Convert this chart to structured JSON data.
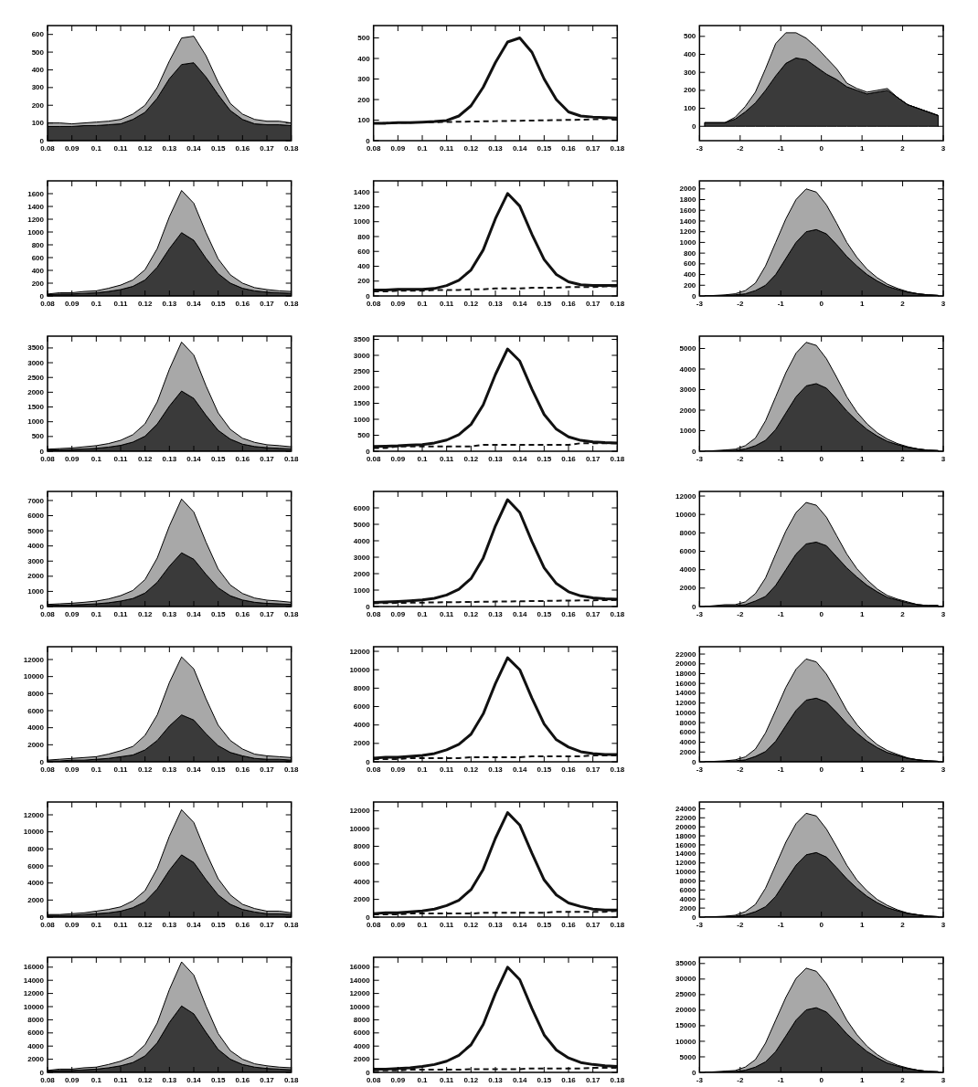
{
  "chart_data": [
    {
      "type": "area",
      "stacked": true,
      "xlim": [
        0.08,
        0.18
      ],
      "xticks": [
        0.08,
        0.09,
        0.1,
        0.11,
        0.12,
        0.13,
        0.14,
        0.15,
        0.16,
        0.17,
        0.18
      ],
      "ylim": [
        0,
        650
      ],
      "yticks": [
        0,
        100,
        200,
        300,
        400,
        500,
        600
      ],
      "x": [
        0.08,
        0.085,
        0.09,
        0.095,
        0.1,
        0.105,
        0.11,
        0.115,
        0.12,
        0.125,
        0.13,
        0.135,
        0.14,
        0.145,
        0.15,
        0.155,
        0.16,
        0.165,
        0.17,
        0.175,
        0.18
      ],
      "series": [
        {
          "color": "#3a3a3a",
          "values": [
            80,
            80,
            80,
            85,
            85,
            90,
            95,
            120,
            160,
            240,
            350,
            430,
            440,
            360,
            260,
            170,
            120,
            95,
            90,
            90,
            85
          ]
        },
        {
          "color": "#a8a8a8",
          "values": [
            20,
            20,
            15,
            15,
            20,
            20,
            25,
            30,
            40,
            60,
            100,
            150,
            150,
            120,
            70,
            40,
            30,
            25,
            20,
            20,
            15
          ]
        }
      ]
    },
    {
      "type": "line",
      "xlim": [
        0.08,
        0.18
      ],
      "xticks": [
        0.08,
        0.09,
        0.1,
        0.11,
        0.12,
        0.13,
        0.14,
        0.15,
        0.16,
        0.17,
        0.18
      ],
      "ylim": [
        0,
        560
      ],
      "yticks": [
        0,
        100,
        200,
        300,
        400,
        500
      ],
      "x": [
        0.08,
        0.085,
        0.09,
        0.095,
        0.1,
        0.105,
        0.11,
        0.115,
        0.12,
        0.125,
        0.13,
        0.135,
        0.14,
        0.145,
        0.15,
        0.155,
        0.16,
        0.165,
        0.17,
        0.175,
        0.18
      ],
      "series": [
        {
          "color": "#111111",
          "line_style": "solid",
          "values": [
            85,
            85,
            88,
            88,
            90,
            93,
            98,
            120,
            170,
            260,
            380,
            480,
            500,
            430,
            300,
            200,
            140,
            120,
            115,
            112,
            110
          ]
        },
        {
          "color": "#111111",
          "line_style": "dashed",
          "values": [
            85,
            86,
            87,
            88,
            89,
            90,
            91,
            92,
            93,
            94,
            95,
            96,
            97,
            98,
            99,
            100,
            101,
            102,
            104,
            106,
            108
          ]
        }
      ]
    },
    {
      "type": "area",
      "stacked": true,
      "xlim": [
        -3,
        3
      ],
      "xticks": [
        -3,
        -2,
        -1,
        0,
        1,
        2,
        3
      ],
      "ylim": [
        -80,
        560
      ],
      "yticks": [
        0,
        100,
        200,
        300,
        400,
        500
      ],
      "x": [
        -2.875,
        -2.625,
        -2.375,
        -2.125,
        -1.875,
        -1.625,
        -1.375,
        -1.125,
        -0.875,
        -0.625,
        -0.375,
        -0.125,
        0.125,
        0.375,
        0.625,
        0.875,
        1.125,
        1.375,
        1.625,
        1.875,
        2.125,
        2.375,
        2.625,
        2.875
      ],
      "series": [
        {
          "color": "#3a3a3a",
          "values": [
            20,
            20,
            20,
            40,
            80,
            130,
            200,
            280,
            350,
            380,
            370,
            330,
            290,
            260,
            220,
            200,
            180,
            190,
            200,
            160,
            120,
            100,
            80,
            60
          ]
        },
        {
          "color": "#a8a8a8",
          "values": [
            0,
            0,
            0,
            10,
            30,
            60,
            120,
            180,
            170,
            140,
            120,
            110,
            90,
            60,
            20,
            10,
            10,
            10,
            10,
            0,
            0,
            0,
            0,
            0
          ]
        }
      ]
    },
    {
      "type": "area",
      "stacked": true,
      "xlim": [
        0.08,
        0.18
      ],
      "xticks": [
        0.08,
        0.09,
        0.1,
        0.11,
        0.12,
        0.13,
        0.14,
        0.15,
        0.16,
        0.17,
        0.18
      ],
      "ylim": [
        0,
        1800
      ],
      "yticks": [
        0,
        200,
        400,
        600,
        800,
        1000,
        1200,
        1400,
        1600
      ],
      "x": [
        0.08,
        0.085,
        0.09,
        0.095,
        0.1,
        0.105,
        0.11,
        0.115,
        0.12,
        0.125,
        0.13,
        0.135,
        0.14,
        0.145,
        0.15,
        0.155,
        0.16,
        0.165,
        0.17,
        0.175,
        0.18
      ],
      "series": [
        {
          "color": "#3a3a3a",
          "values": [
            20,
            30,
            30,
            40,
            50,
            70,
            100,
            150,
            250,
            450,
            740,
            990,
            870,
            590,
            350,
            200,
            120,
            80,
            60,
            50,
            40
          ]
        },
        {
          "color": "#a8a8a8",
          "values": [
            10,
            20,
            20,
            30,
            30,
            50,
            70,
            100,
            160,
            290,
            500,
            660,
            580,
            400,
            230,
            130,
            80,
            50,
            40,
            30,
            30
          ]
        }
      ]
    },
    {
      "type": "line",
      "xlim": [
        0.08,
        0.18
      ],
      "xticks": [
        0.08,
        0.09,
        0.1,
        0.11,
        0.12,
        0.13,
        0.14,
        0.15,
        0.16,
        0.17,
        0.18
      ],
      "ylim": [
        0,
        1550
      ],
      "yticks": [
        0,
        200,
        400,
        600,
        800,
        1000,
        1200,
        1400
      ],
      "x": [
        0.08,
        0.085,
        0.09,
        0.095,
        0.1,
        0.105,
        0.11,
        0.115,
        0.12,
        0.125,
        0.13,
        0.135,
        0.14,
        0.145,
        0.15,
        0.155,
        0.16,
        0.165,
        0.17,
        0.175,
        0.18
      ],
      "series": [
        {
          "color": "#111111",
          "line_style": "solid",
          "values": [
            80,
            80,
            90,
            90,
            90,
            100,
            140,
            210,
            350,
            620,
            1040,
            1380,
            1210,
            830,
            490,
            290,
            190,
            150,
            140,
            140,
            140
          ]
        },
        {
          "color": "#111111",
          "line_style": "dashed",
          "values": [
            60,
            60,
            70,
            70,
            70,
            80,
            80,
            80,
            90,
            90,
            100,
            100,
            100,
            110,
            110,
            110,
            120,
            120,
            120,
            130,
            130
          ]
        }
      ]
    },
    {
      "type": "area",
      "stacked": true,
      "xlim": [
        -3,
        3
      ],
      "xticks": [
        -3,
        -2,
        -1,
        0,
        1,
        2,
        3
      ],
      "ylim": [
        0,
        2150
      ],
      "yticks": [
        0,
        200,
        400,
        600,
        800,
        1000,
        1200,
        1400,
        1600,
        1800,
        2000
      ],
      "x": [
        -2.875,
        -2.625,
        -2.375,
        -2.125,
        -1.875,
        -1.625,
        -1.375,
        -1.125,
        -0.875,
        -0.625,
        -0.375,
        -0.125,
        0.125,
        0.375,
        0.625,
        0.875,
        1.125,
        1.375,
        1.625,
        1.875,
        2.125,
        2.375,
        2.625,
        2.875
      ],
      "series": [
        {
          "color": "#3a3a3a",
          "values": [
            0,
            0,
            10,
            20,
            40,
            100,
            200,
            400,
            700,
            1000,
            1200,
            1240,
            1160,
            960,
            740,
            560,
            400,
            280,
            180,
            120,
            70,
            40,
            20,
            10
          ]
        },
        {
          "color": "#a8a8a8",
          "values": [
            0,
            10,
            10,
            20,
            60,
            140,
            360,
            600,
            740,
            800,
            800,
            700,
            540,
            400,
            260,
            160,
            100,
            60,
            40,
            20,
            10,
            0,
            0,
            0
          ]
        }
      ]
    },
    {
      "type": "area",
      "stacked": true,
      "xlim": [
        0.08,
        0.18
      ],
      "xticks": [
        0.08,
        0.09,
        0.1,
        0.11,
        0.12,
        0.13,
        0.14,
        0.15,
        0.16,
        0.17,
        0.18
      ],
      "ylim": [
        0,
        3900
      ],
      "yticks": [
        0,
        500,
        1000,
        1500,
        2000,
        2500,
        3000,
        3500
      ],
      "x": [
        0.08,
        0.085,
        0.09,
        0.095,
        0.1,
        0.105,
        0.11,
        0.115,
        0.12,
        0.125,
        0.13,
        0.135,
        0.14,
        0.145,
        0.15,
        0.155,
        0.16,
        0.165,
        0.17,
        0.175,
        0.18
      ],
      "series": [
        {
          "color": "#3a3a3a",
          "values": [
            40,
            50,
            60,
            80,
            100,
            140,
            200,
            310,
            510,
            920,
            1530,
            2040,
            1790,
            1220,
            710,
            410,
            240,
            160,
            120,
            100,
            80
          ]
        },
        {
          "color": "#a8a8a8",
          "values": [
            30,
            40,
            50,
            70,
            90,
            120,
            170,
            250,
            420,
            750,
            1250,
            1660,
            1470,
            1000,
            590,
            330,
            200,
            140,
            100,
            90,
            70
          ]
        }
      ]
    },
    {
      "type": "line",
      "xlim": [
        0.08,
        0.18
      ],
      "xticks": [
        0.08,
        0.09,
        0.1,
        0.11,
        0.12,
        0.13,
        0.14,
        0.15,
        0.16,
        0.17,
        0.18
      ],
      "ylim": [
        0,
        3600
      ],
      "yticks": [
        0,
        500,
        1000,
        1500,
        2000,
        2500,
        3000,
        3500
      ],
      "x": [
        0.08,
        0.085,
        0.09,
        0.095,
        0.1,
        0.105,
        0.11,
        0.115,
        0.12,
        0.125,
        0.13,
        0.135,
        0.14,
        0.145,
        0.15,
        0.155,
        0.16,
        0.165,
        0.17,
        0.175,
        0.18
      ],
      "series": [
        {
          "color": "#111111",
          "line_style": "solid",
          "values": [
            150,
            160,
            170,
            190,
            210,
            260,
            350,
            520,
            840,
            1450,
            2400,
            3200,
            2820,
            1940,
            1150,
            690,
            450,
            340,
            290,
            270,
            260
          ]
        },
        {
          "color": "#111111",
          "line_style": "dashed",
          "values": [
            100,
            100,
            150,
            150,
            150,
            150,
            150,
            150,
            150,
            200,
            200,
            200,
            200,
            200,
            200,
            200,
            200,
            250,
            250,
            250,
            250
          ]
        }
      ]
    },
    {
      "type": "area",
      "stacked": true,
      "xlim": [
        -3,
        3
      ],
      "xticks": [
        -3,
        -2,
        -1,
        0,
        1,
        2,
        3
      ],
      "ylim": [
        0,
        5600
      ],
      "yticks": [
        0,
        1000,
        2000,
        3000,
        4000,
        5000
      ],
      "x": [
        -2.875,
        -2.625,
        -2.375,
        -2.125,
        -1.875,
        -1.625,
        -1.375,
        -1.125,
        -0.875,
        -0.625,
        -0.375,
        -0.125,
        0.125,
        0.375,
        0.625,
        0.875,
        1.125,
        1.375,
        1.625,
        1.875,
        2.125,
        2.375,
        2.625,
        2.875
      ],
      "series": [
        {
          "color": "#3a3a3a",
          "values": [
            0,
            0,
            30,
            50,
            110,
            270,
            530,
            1060,
            1860,
            2650,
            3180,
            3290,
            3070,
            2540,
            1960,
            1480,
            1060,
            740,
            480,
            320,
            190,
            110,
            50,
            30
          ]
        },
        {
          "color": "#a8a8a8",
          "values": [
            0,
            30,
            30,
            50,
            160,
            370,
            950,
            1590,
            1960,
            2120,
            2120,
            1860,
            1430,
            1060,
            690,
            420,
            270,
            160,
            110,
            50,
            30,
            0,
            0,
            0
          ]
        }
      ]
    },
    {
      "type": "area",
      "stacked": true,
      "xlim": [
        0.08,
        0.18
      ],
      "xticks": [
        0.08,
        0.09,
        0.1,
        0.11,
        0.12,
        0.13,
        0.14,
        0.15,
        0.16,
        0.17,
        0.18
      ],
      "ylim": [
        0,
        7600
      ],
      "yticks": [
        0,
        1000,
        2000,
        3000,
        4000,
        5000,
        6000,
        7000
      ],
      "x": [
        0.08,
        0.085,
        0.09,
        0.095,
        0.1,
        0.105,
        0.11,
        0.115,
        0.12,
        0.125,
        0.13,
        0.135,
        0.14,
        0.145,
        0.15,
        0.155,
        0.16,
        0.165,
        0.17,
        0.175,
        0.18
      ],
      "series": [
        {
          "color": "#3a3a3a",
          "values": [
            70,
            90,
            110,
            140,
            180,
            250,
            360,
            530,
            890,
            1600,
            2660,
            3550,
            3120,
            2130,
            1240,
            710,
            430,
            280,
            210,
            180,
            140
          ]
        },
        {
          "color": "#a8a8a8",
          "values": [
            70,
            90,
            110,
            140,
            180,
            250,
            360,
            530,
            890,
            1600,
            2660,
            3550,
            3120,
            2130,
            1240,
            710,
            430,
            280,
            210,
            180,
            140
          ]
        }
      ]
    },
    {
      "type": "line",
      "xlim": [
        0.08,
        0.18
      ],
      "xticks": [
        0.08,
        0.09,
        0.1,
        0.11,
        0.12,
        0.13,
        0.14,
        0.15,
        0.16,
        0.17,
        0.18
      ],
      "ylim": [
        0,
        7000
      ],
      "yticks": [
        0,
        1000,
        2000,
        3000,
        4000,
        5000,
        6000
      ],
      "x": [
        0.08,
        0.085,
        0.09,
        0.095,
        0.1,
        0.105,
        0.11,
        0.115,
        0.12,
        0.125,
        0.13,
        0.135,
        0.14,
        0.145,
        0.15,
        0.155,
        0.16,
        0.165,
        0.17,
        0.175,
        0.18
      ],
      "series": [
        {
          "color": "#111111",
          "line_style": "solid",
          "values": [
            250,
            280,
            310,
            350,
            400,
            500,
            700,
            1050,
            1700,
            2950,
            4900,
            6500,
            5720,
            3950,
            2350,
            1400,
            900,
            650,
            530,
            470,
            440
          ]
        },
        {
          "color": "#111111",
          "line_style": "dashed",
          "values": [
            200,
            210,
            220,
            230,
            240,
            250,
            260,
            270,
            280,
            290,
            300,
            310,
            320,
            330,
            340,
            350,
            360,
            370,
            380,
            390,
            400
          ]
        }
      ]
    },
    {
      "type": "area",
      "stacked": true,
      "xlim": [
        -3,
        3
      ],
      "xticks": [
        -3,
        -2,
        -1,
        0,
        1,
        2,
        3
      ],
      "ylim": [
        0,
        12500
      ],
      "yticks": [
        0,
        2000,
        4000,
        6000,
        8000,
        10000,
        12000
      ],
      "x": [
        -2.875,
        -2.625,
        -2.375,
        -2.125,
        -1.875,
        -1.625,
        -1.375,
        -1.125,
        -0.875,
        -0.625,
        -0.375,
        -0.125,
        0.125,
        0.375,
        0.625,
        0.875,
        1.125,
        1.375,
        1.625,
        1.875,
        2.125,
        2.375,
        2.625,
        2.875
      ],
      "series": [
        {
          "color": "#3a3a3a",
          "values": [
            0,
            0,
            100,
            100,
            200,
            600,
            1100,
            2300,
            4000,
            5700,
            6800,
            7000,
            6600,
            5400,
            4200,
            3200,
            2300,
            1600,
            1000,
            700,
            400,
            200,
            100,
            100
          ]
        },
        {
          "color": "#a8a8a8",
          "values": [
            0,
            100,
            100,
            100,
            300,
            800,
            2000,
            3400,
            4200,
            4500,
            4500,
            4000,
            3100,
            2300,
            1500,
            900,
            600,
            300,
            200,
            100,
            100,
            0,
            0,
            0
          ]
        }
      ]
    },
    {
      "type": "area",
      "stacked": true,
      "xlim": [
        0.08,
        0.18
      ],
      "xticks": [
        0.08,
        0.09,
        0.1,
        0.11,
        0.12,
        0.13,
        0.14,
        0.15,
        0.16,
        0.17,
        0.18
      ],
      "ylim": [
        0,
        13500
      ],
      "yticks": [
        0,
        2000,
        4000,
        6000,
        8000,
        10000,
        12000
      ],
      "x": [
        0.08,
        0.085,
        0.09,
        0.095,
        0.1,
        0.105,
        0.11,
        0.115,
        0.12,
        0.125,
        0.13,
        0.135,
        0.14,
        0.145,
        0.15,
        0.155,
        0.16,
        0.165,
        0.17,
        0.175,
        0.18
      ],
      "series": [
        {
          "color": "#3a3a3a",
          "values": [
            100,
            100,
            200,
            200,
            300,
            400,
            600,
            800,
            1400,
            2500,
            4200,
            5500,
            4900,
            3300,
            1900,
            1100,
            700,
            400,
            300,
            300,
            200
          ]
        },
        {
          "color": "#a8a8a8",
          "values": [
            100,
            200,
            200,
            300,
            300,
            500,
            700,
            1000,
            1700,
            3000,
            5100,
            6800,
            6000,
            4100,
            2400,
            1400,
            800,
            500,
            400,
            300,
            300
          ]
        }
      ]
    },
    {
      "type": "line",
      "xlim": [
        0.08,
        0.18
      ],
      "xticks": [
        0.08,
        0.09,
        0.1,
        0.11,
        0.12,
        0.13,
        0.14,
        0.15,
        0.16,
        0.17,
        0.18
      ],
      "ylim": [
        0,
        12500
      ],
      "yticks": [
        0,
        2000,
        4000,
        6000,
        8000,
        10000,
        12000
      ],
      "x": [
        0.08,
        0.085,
        0.09,
        0.095,
        0.1,
        0.105,
        0.11,
        0.115,
        0.12,
        0.125,
        0.13,
        0.135,
        0.14,
        0.145,
        0.15,
        0.155,
        0.16,
        0.165,
        0.17,
        0.175,
        0.18
      ],
      "series": [
        {
          "color": "#111111",
          "line_style": "solid",
          "values": [
            400,
            500,
            500,
            600,
            700,
            900,
            1300,
            1900,
            3000,
            5200,
            8500,
            11300,
            10000,
            6900,
            4100,
            2400,
            1600,
            1100,
            900,
            800,
            800
          ]
        },
        {
          "color": "#111111",
          "line_style": "dashed",
          "values": [
            300,
            300,
            300,
            400,
            400,
            400,
            400,
            400,
            500,
            500,
            500,
            500,
            500,
            600,
            600,
            600,
            600,
            600,
            700,
            700,
            700
          ]
        }
      ]
    },
    {
      "type": "area",
      "stacked": true,
      "xlim": [
        -3,
        3
      ],
      "xticks": [
        -3,
        -2,
        -1,
        0,
        1,
        2,
        3
      ],
      "ylim": [
        0,
        23500
      ],
      "yticks": [
        0,
        2000,
        4000,
        6000,
        8000,
        10000,
        12000,
        14000,
        16000,
        18000,
        20000,
        22000
      ],
      "x": [
        -2.875,
        -2.625,
        -2.375,
        -2.125,
        -1.875,
        -1.625,
        -1.375,
        -1.125,
        -0.875,
        -0.625,
        -0.375,
        -0.125,
        0.125,
        0.375,
        0.625,
        0.875,
        1.125,
        1.375,
        1.625,
        1.875,
        2.125,
        2.375,
        2.625,
        2.875
      ],
      "series": [
        {
          "color": "#3a3a3a",
          "values": [
            0,
            0,
            100,
            200,
            400,
            1100,
            2100,
            4200,
            7400,
            10500,
            12600,
            13000,
            12200,
            10100,
            7800,
            5900,
            4200,
            2900,
            1900,
            1300,
            700,
            400,
            200,
            100
          ]
        },
        {
          "color": "#a8a8a8",
          "values": [
            0,
            100,
            100,
            200,
            600,
            1500,
            3800,
            6300,
            7800,
            8400,
            8400,
            7400,
            5700,
            4200,
            2700,
            1700,
            1100,
            600,
            400,
            200,
            100,
            0,
            0,
            0
          ]
        }
      ]
    },
    {
      "type": "area",
      "stacked": true,
      "xlim": [
        0.08,
        0.18
      ],
      "xticks": [
        0.08,
        0.09,
        0.1,
        0.11,
        0.12,
        0.13,
        0.14,
        0.15,
        0.16,
        0.17,
        0.18
      ],
      "ylim": [
        0,
        13500
      ],
      "yticks": [
        0,
        2000,
        4000,
        6000,
        8000,
        10000,
        12000
      ],
      "x": [
        0.08,
        0.085,
        0.09,
        0.095,
        0.1,
        0.105,
        0.11,
        0.115,
        0.12,
        0.125,
        0.13,
        0.135,
        0.14,
        0.145,
        0.15,
        0.155,
        0.16,
        0.165,
        0.17,
        0.175,
        0.18
      ],
      "series": [
        {
          "color": "#3a3a3a",
          "values": [
            200,
            200,
            200,
            300,
            400,
            500,
            700,
            1100,
            1800,
            3300,
            5500,
            7300,
            6400,
            4400,
            2600,
            1500,
            900,
            600,
            400,
            400,
            300
          ]
        },
        {
          "color": "#a8a8a8",
          "values": [
            100,
            100,
            200,
            200,
            300,
            400,
            500,
            800,
            1300,
            2400,
            4000,
            5300,
            4700,
            3200,
            1900,
            1100,
            600,
            400,
            300,
            300,
            200
          ]
        }
      ]
    },
    {
      "type": "line",
      "xlim": [
        0.08,
        0.18
      ],
      "xticks": [
        0.08,
        0.09,
        0.1,
        0.11,
        0.12,
        0.13,
        0.14,
        0.15,
        0.16,
        0.17,
        0.18
      ],
      "ylim": [
        0,
        13000
      ],
      "yticks": [
        0,
        2000,
        4000,
        6000,
        8000,
        10000,
        12000
      ],
      "x": [
        0.08,
        0.085,
        0.09,
        0.095,
        0.1,
        0.105,
        0.11,
        0.115,
        0.12,
        0.125,
        0.13,
        0.135,
        0.14,
        0.145,
        0.15,
        0.155,
        0.16,
        0.165,
        0.17,
        0.175,
        0.18
      ],
      "series": [
        {
          "color": "#111111",
          "line_style": "solid",
          "values": [
            400,
            500,
            500,
            600,
            700,
            900,
            1300,
            1900,
            3100,
            5400,
            8900,
            11800,
            10400,
            7200,
            4200,
            2500,
            1600,
            1200,
            900,
            800,
            800
          ]
        },
        {
          "color": "#111111",
          "line_style": "dashed",
          "values": [
            300,
            300,
            300,
            400,
            400,
            400,
            400,
            400,
            400,
            500,
            500,
            500,
            500,
            500,
            500,
            600,
            600,
            600,
            600,
            600,
            700
          ]
        }
      ]
    },
    {
      "type": "area",
      "stacked": true,
      "xlim": [
        -3,
        3
      ],
      "xticks": [
        -3,
        -2,
        -1,
        0,
        1,
        2,
        3
      ],
      "ylim": [
        0,
        25500
      ],
      "yticks": [
        0,
        2000,
        4000,
        6000,
        8000,
        10000,
        12000,
        14000,
        16000,
        18000,
        20000,
        22000,
        24000
      ],
      "x": [
        -2.875,
        -2.625,
        -2.375,
        -2.125,
        -1.875,
        -1.625,
        -1.375,
        -1.125,
        -0.875,
        -0.625,
        -0.375,
        -0.125,
        0.125,
        0.375,
        0.625,
        0.875,
        1.125,
        1.375,
        1.625,
        1.875,
        2.125,
        2.375,
        2.625,
        2.875
      ],
      "series": [
        {
          "color": "#3a3a3a",
          "values": [
            0,
            0,
            100,
            200,
            500,
            1200,
            2300,
            4600,
            8100,
            11500,
            13800,
            14300,
            13300,
            11000,
            8500,
            6400,
            4600,
            3200,
            2100,
            1400,
            800,
            500,
            200,
            100
          ]
        },
        {
          "color": "#a8a8a8",
          "values": [
            0,
            100,
            100,
            200,
            700,
            1600,
            4100,
            6900,
            8500,
            9200,
            9200,
            8100,
            6200,
            4600,
            3000,
            1800,
            1200,
            700,
            500,
            200,
            100,
            0,
            0,
            0
          ]
        }
      ]
    },
    {
      "type": "area",
      "stacked": true,
      "xlim": [
        0.08,
        0.18
      ],
      "xticks": [
        0.08,
        0.09,
        0.1,
        0.11,
        0.12,
        0.13,
        0.14,
        0.15,
        0.16,
        0.17,
        0.18
      ],
      "ylim": [
        0,
        17500
      ],
      "yticks": [
        0,
        2000,
        4000,
        6000,
        8000,
        10000,
        12000,
        14000,
        16000
      ],
      "x": [
        0.08,
        0.085,
        0.09,
        0.095,
        0.1,
        0.105,
        0.11,
        0.115,
        0.12,
        0.125,
        0.13,
        0.135,
        0.14,
        0.145,
        0.15,
        0.155,
        0.16,
        0.165,
        0.17,
        0.175,
        0.18
      ],
      "series": [
        {
          "color": "#3a3a3a",
          "values": [
            200,
            300,
            300,
            400,
            500,
            700,
            1000,
            1500,
            2500,
            4500,
            7600,
            10100,
            8900,
            6100,
            3500,
            2000,
            1200,
            800,
            600,
            500,
            400
          ]
        },
        {
          "color": "#a8a8a8",
          "values": [
            100,
            200,
            200,
            300,
            300,
            500,
            700,
            1000,
            1700,
            3000,
            5000,
            6700,
            5900,
            4000,
            2400,
            1300,
            800,
            500,
            400,
            300,
            300
          ]
        }
      ]
    },
    {
      "type": "line",
      "xlim": [
        0.08,
        0.18
      ],
      "xticks": [
        0.08,
        0.09,
        0.1,
        0.11,
        0.12,
        0.13,
        0.14,
        0.15,
        0.16,
        0.17,
        0.18
      ],
      "ylim": [
        0,
        17500
      ],
      "yticks": [
        0,
        2000,
        4000,
        6000,
        8000,
        10000,
        12000,
        14000,
        16000
      ],
      "x": [
        0.08,
        0.085,
        0.09,
        0.095,
        0.1,
        0.105,
        0.11,
        0.115,
        0.12,
        0.125,
        0.13,
        0.135,
        0.14,
        0.145,
        0.15,
        0.155,
        0.16,
        0.165,
        0.17,
        0.175,
        0.18
      ],
      "series": [
        {
          "color": "#111111",
          "line_style": "solid",
          "values": [
            500,
            500,
            600,
            700,
            900,
            1200,
            1700,
            2600,
            4200,
            7300,
            12000,
            16000,
            14100,
            9700,
            5700,
            3400,
            2200,
            1500,
            1200,
            1000,
            900
          ]
        },
        {
          "color": "#111111",
          "line_style": "dashed",
          "values": [
            300,
            300,
            300,
            400,
            400,
            400,
            400,
            400,
            500,
            500,
            500,
            500,
            500,
            600,
            600,
            600,
            600,
            600,
            700,
            700,
            700
          ]
        }
      ]
    },
    {
      "type": "area",
      "stacked": true,
      "xlim": [
        -3,
        3
      ],
      "xticks": [
        -3,
        -2,
        -1,
        0,
        1,
        2,
        3
      ],
      "ylim": [
        0,
        37000
      ],
      "yticks": [
        0,
        5000,
        10000,
        15000,
        20000,
        25000,
        30000,
        35000
      ],
      "x": [
        -2.875,
        -2.625,
        -2.375,
        -2.125,
        -1.875,
        -1.625,
        -1.375,
        -1.125,
        -0.875,
        -0.625,
        -0.375,
        -0.125,
        0.125,
        0.375,
        0.625,
        0.875,
        1.125,
        1.375,
        1.625,
        1.875,
        2.125,
        2.375,
        2.625,
        2.875
      ],
      "series": [
        {
          "color": "#3a3a3a",
          "values": [
            0,
            0,
            200,
            300,
            700,
            1700,
            3400,
            6700,
            11700,
            16800,
            20100,
            20800,
            19400,
            16100,
            12400,
            9400,
            6700,
            4700,
            3000,
            2000,
            1200,
            700,
            300,
            200
          ]
        },
        {
          "color": "#a8a8a8",
          "values": [
            0,
            200,
            200,
            300,
            1000,
            2400,
            6000,
            10100,
            12400,
            13400,
            13400,
            11700,
            9100,
            6700,
            4400,
            2700,
            1700,
            1000,
            700,
            300,
            200,
            0,
            0,
            0
          ]
        }
      ]
    }
  ]
}
